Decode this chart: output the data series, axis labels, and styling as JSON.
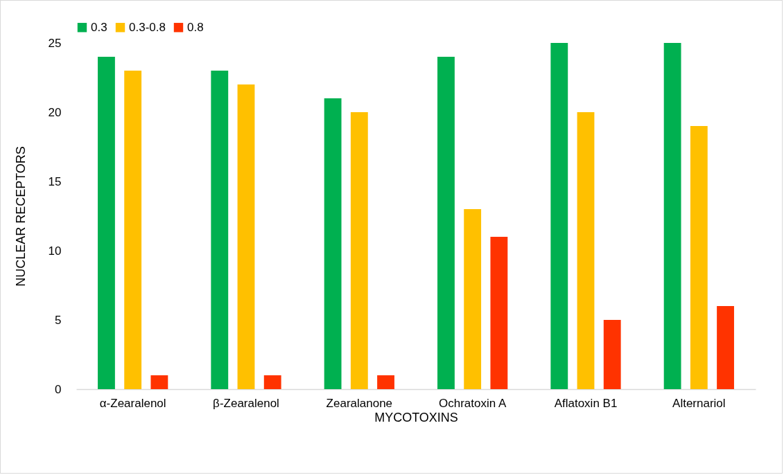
{
  "chart_data": {
    "type": "bar",
    "xlabel": "MYCOTOXINS",
    "ylabel": "NUCLEAR RECEPTORS",
    "categories": [
      "α-Zearalenol",
      "β-Zearalenol",
      "Zearalanone",
      "Ochratoxin A",
      "Aflatoxin B1",
      "Alternariol"
    ],
    "series": [
      {
        "name": "0.3",
        "color": "#00b050",
        "values": [
          24,
          23,
          21,
          24,
          25,
          25
        ]
      },
      {
        "name": "0.3-0.8",
        "color": "#ffc000",
        "values": [
          23,
          22,
          20,
          13,
          20,
          19
        ]
      },
      {
        "name": "0.8",
        "color": "#ff3300",
        "values": [
          1,
          1,
          1,
          11,
          5,
          6
        ]
      }
    ],
    "ylim": [
      0,
      25
    ],
    "yticks": [
      0,
      5,
      10,
      15,
      20,
      25
    ],
    "legend": "top"
  }
}
